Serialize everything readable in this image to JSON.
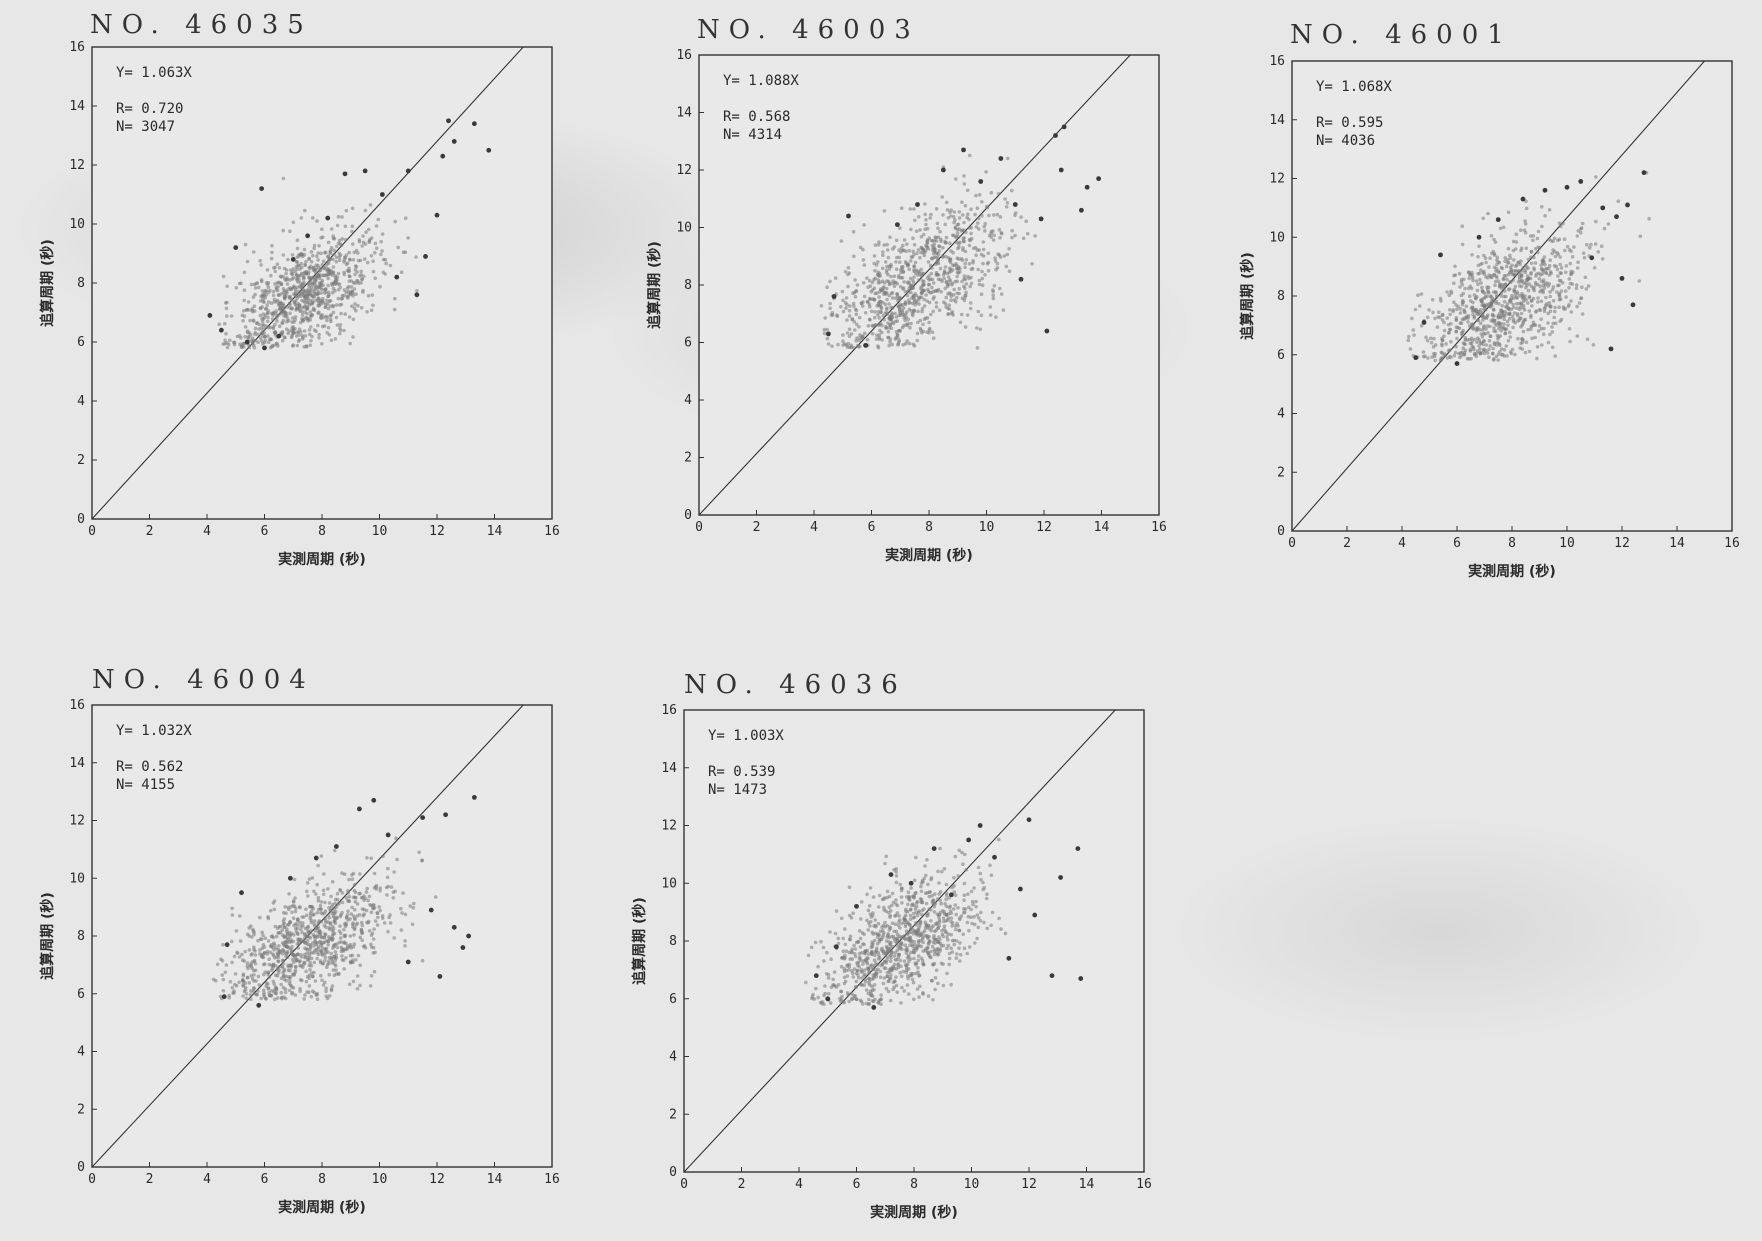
{
  "charts": [
    {
      "station": "NO. 46035",
      "regression": "Y= 1.063X",
      "r": "R= 0.720",
      "n": "N= 3047"
    },
    {
      "station": "NO. 46003",
      "regression": "Y= 1.088X",
      "r": "R= 0.568",
      "n": "N= 4314"
    },
    {
      "station": "NO. 46001",
      "regression": "Y= 1.068X",
      "r": "R= 0.595",
      "n": "N= 4036"
    },
    {
      "station": "NO. 46004",
      "regression": "Y= 1.032X",
      "r": "R= 0.562",
      "n": "N= 4155"
    },
    {
      "station": "NO. 46036",
      "regression": "Y= 1.003X",
      "r": "R= 0.539",
      "n": "N= 1473"
    }
  ],
  "axes": {
    "xlabel": "実測周期 (秒)",
    "ylabel": "追算周期 (秒)",
    "ticks": [
      "0",
      "2",
      "4",
      "6",
      "8",
      "10",
      "12",
      "14",
      "16"
    ]
  },
  "colors": {
    "point": "#3a3a3a",
    "cloud": "#8a8a8a",
    "frame": "#333333"
  },
  "chart_data": [
    {
      "type": "scatter",
      "title": "NO. 46035",
      "xlabel": "実測周期 (秒)",
      "ylabel": "追算周期 (秒)",
      "xlim": [
        0,
        16
      ],
      "ylim": [
        0,
        16
      ],
      "grid": false,
      "legend": "none",
      "annotations": [
        "Y= 1.063X",
        "R= 0.720",
        "N= 3047"
      ],
      "reference_line": {
        "x": [
          0,
          15
        ],
        "y": [
          0,
          16
        ]
      },
      "cloud": {
        "x_center": 7.4,
        "y_center": 7.6,
        "x_spread": 1.3,
        "y_spread": 0.9
      },
      "points": [
        [
          4.1,
          6.9
        ],
        [
          4.5,
          6.4
        ],
        [
          5.0,
          9.2
        ],
        [
          5.4,
          6.0
        ],
        [
          5.9,
          11.2
        ],
        [
          6.0,
          5.8
        ],
        [
          6.5,
          6.2
        ],
        [
          7.0,
          8.8
        ],
        [
          7.5,
          9.6
        ],
        [
          8.2,
          10.2
        ],
        [
          8.8,
          11.7
        ],
        [
          9.5,
          11.8
        ],
        [
          10.1,
          11.0
        ],
        [
          10.6,
          8.2
        ],
        [
          11.0,
          11.8
        ],
        [
          11.3,
          7.6
        ],
        [
          11.6,
          8.9
        ],
        [
          12.0,
          10.3
        ],
        [
          12.2,
          12.3
        ],
        [
          12.4,
          13.5
        ],
        [
          12.6,
          12.8
        ],
        [
          13.3,
          13.4
        ],
        [
          13.8,
          12.5
        ]
      ]
    },
    {
      "type": "scatter",
      "title": "NO. 46003",
      "xlabel": "実測周期 (秒)",
      "ylabel": "追算周期 (秒)",
      "xlim": [
        0,
        16
      ],
      "ylim": [
        0,
        16
      ],
      "grid": false,
      "legend": "none",
      "annotations": [
        "Y= 1.088X",
        "R= 0.568",
        "N= 4314"
      ],
      "reference_line": {
        "x": [
          0,
          15
        ],
        "y": [
          0,
          16
        ]
      },
      "cloud": {
        "x_center": 7.6,
        "y_center": 8.1,
        "x_spread": 1.5,
        "y_spread": 1.1
      },
      "points": [
        [
          4.5,
          6.3
        ],
        [
          4.7,
          7.6
        ],
        [
          5.2,
          10.4
        ],
        [
          5.8,
          5.9
        ],
        [
          6.9,
          10.1
        ],
        [
          7.6,
          10.8
        ],
        [
          8.5,
          12.0
        ],
        [
          9.2,
          12.7
        ],
        [
          9.8,
          11.6
        ],
        [
          10.5,
          12.4
        ],
        [
          11.0,
          10.8
        ],
        [
          11.2,
          8.2
        ],
        [
          11.9,
          10.3
        ],
        [
          12.1,
          6.4
        ],
        [
          12.4,
          13.2
        ],
        [
          12.6,
          12.0
        ],
        [
          12.7,
          13.5
        ],
        [
          13.3,
          10.6
        ],
        [
          13.5,
          11.4
        ],
        [
          13.9,
          11.7
        ]
      ]
    },
    {
      "type": "scatter",
      "title": "NO. 46001",
      "xlabel": "実測周期 (秒)",
      "ylabel": "追算周期 (秒)",
      "xlim": [
        0,
        16
      ],
      "ylim": [
        0,
        16
      ],
      "grid": false,
      "legend": "none",
      "annotations": [
        "Y= 1.068X",
        "R= 0.595",
        "N= 4036"
      ],
      "reference_line": {
        "x": [
          0,
          15
        ],
        "y": [
          0,
          16
        ]
      },
      "cloud": {
        "x_center": 7.7,
        "y_center": 7.8,
        "x_spread": 1.5,
        "y_spread": 1.0
      },
      "points": [
        [
          4.5,
          5.9
        ],
        [
          4.8,
          7.1
        ],
        [
          5.4,
          9.4
        ],
        [
          6.0,
          5.7
        ],
        [
          6.8,
          10.0
        ],
        [
          7.5,
          10.6
        ],
        [
          8.4,
          11.3
        ],
        [
          9.2,
          11.6
        ],
        [
          10.0,
          11.7
        ],
        [
          10.5,
          11.9
        ],
        [
          10.9,
          9.3
        ],
        [
          11.3,
          11.0
        ],
        [
          11.6,
          6.2
        ],
        [
          11.8,
          10.7
        ],
        [
          12.0,
          8.6
        ],
        [
          12.2,
          11.1
        ],
        [
          12.4,
          7.7
        ],
        [
          12.8,
          12.2
        ]
      ]
    },
    {
      "type": "scatter",
      "title": "NO. 46004",
      "xlabel": "実測周期 (秒)",
      "ylabel": "追算周期 (秒)",
      "xlim": [
        0,
        16
      ],
      "ylim": [
        0,
        16
      ],
      "grid": false,
      "legend": "none",
      "annotations": [
        "Y= 1.032X",
        "R= 0.562",
        "N= 4155"
      ],
      "reference_line": {
        "x": [
          0,
          15
        ],
        "y": [
          0,
          16
        ]
      },
      "cloud": {
        "x_center": 7.5,
        "y_center": 7.7,
        "x_spread": 1.5,
        "y_spread": 1.0
      },
      "points": [
        [
          4.6,
          5.9
        ],
        [
          4.7,
          7.7
        ],
        [
          5.2,
          9.5
        ],
        [
          5.8,
          5.6
        ],
        [
          6.9,
          10.0
        ],
        [
          7.8,
          10.7
        ],
        [
          8.5,
          11.1
        ],
        [
          9.3,
          12.4
        ],
        [
          9.8,
          12.7
        ],
        [
          10.3,
          11.5
        ],
        [
          11.0,
          7.1
        ],
        [
          11.5,
          12.1
        ],
        [
          11.8,
          8.9
        ],
        [
          12.1,
          6.6
        ],
        [
          12.3,
          12.2
        ],
        [
          12.6,
          8.3
        ],
        [
          12.9,
          7.6
        ],
        [
          13.1,
          8.0
        ],
        [
          13.3,
          12.8
        ]
      ]
    },
    {
      "type": "scatter",
      "title": "NO. 46036",
      "xlabel": "実測周期 (秒)",
      "ylabel": "追算周期 (秒)",
      "xlim": [
        0,
        16
      ],
      "ylim": [
        0,
        16
      ],
      "grid": false,
      "legend": "none",
      "annotations": [
        "Y= 1.003X",
        "R= 0.539",
        "N= 1473"
      ],
      "reference_line": {
        "x": [
          0,
          15
        ],
        "y": [
          0,
          16
        ]
      },
      "cloud": {
        "x_center": 7.6,
        "y_center": 7.9,
        "x_spread": 1.4,
        "y_spread": 1.0
      },
      "points": [
        [
          4.6,
          6.8
        ],
        [
          5.0,
          6.0
        ],
        [
          5.3,
          7.8
        ],
        [
          6.0,
          9.2
        ],
        [
          6.6,
          5.7
        ],
        [
          7.2,
          10.3
        ],
        [
          7.9,
          10.0
        ],
        [
          8.7,
          11.2
        ],
        [
          9.3,
          9.6
        ],
        [
          9.9,
          11.5
        ],
        [
          10.3,
          12.0
        ],
        [
          10.8,
          10.9
        ],
        [
          11.3,
          7.4
        ],
        [
          11.7,
          9.8
        ],
        [
          12.0,
          12.2
        ],
        [
          12.2,
          8.9
        ],
        [
          12.8,
          6.8
        ],
        [
          13.1,
          10.2
        ],
        [
          13.7,
          11.2
        ],
        [
          13.8,
          6.7
        ]
      ]
    }
  ]
}
